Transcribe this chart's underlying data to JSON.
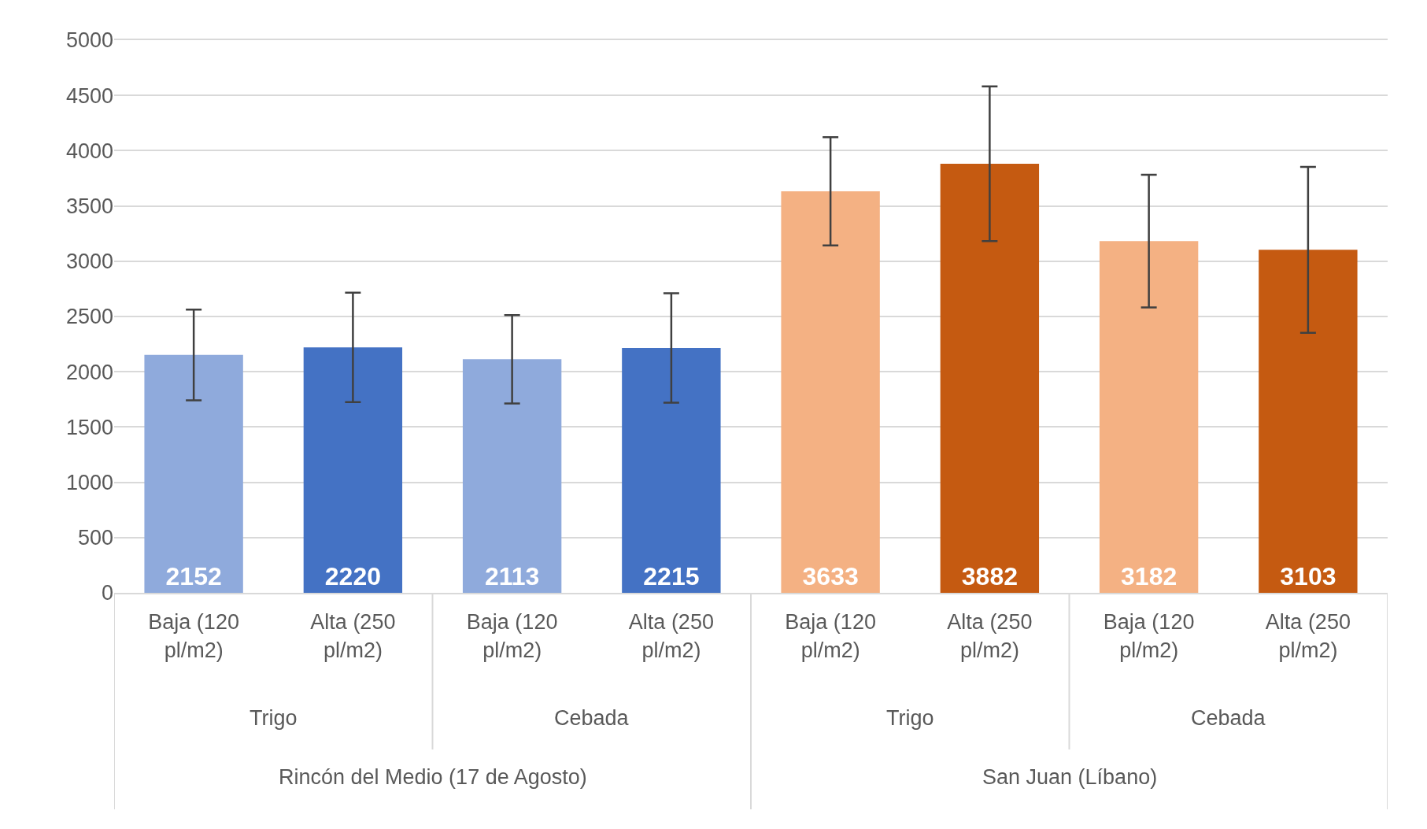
{
  "chart_data": {
    "type": "bar",
    "categories": [
      "Baja (120 pl/m2)",
      "Alta (250 pl/m2)",
      "Baja (120 pl/m2)",
      "Alta (250 pl/m2)",
      "Baja (120 pl/m2)",
      "Alta (250 pl/m2)",
      "Baja (120 pl/m2)",
      "Alta (250 pl/m2)"
    ],
    "values": [
      2152,
      2220,
      2113,
      2215,
      3633,
      3882,
      3182,
      3103
    ],
    "colors": [
      "#8faadc",
      "#4472c4",
      "#8faadc",
      "#4472c4",
      "#f4b183",
      "#c55a11",
      "#f4b183",
      "#c55a11"
    ],
    "errors": [
      410,
      495,
      400,
      495,
      490,
      700,
      600,
      750
    ],
    "data_labels": true,
    "annotations": [
      "Trigo",
      "Cebada",
      "Trigo",
      "Cebada",
      "Rincón del Medio (17 de Agosto)",
      "San Juan (Líbano)"
    ],
    "ylim": [
      0,
      5000
    ],
    "yticks": [
      0,
      500,
      1000,
      1500,
      2000,
      2500,
      3000,
      3500,
      4000,
      4500,
      5000
    ],
    "grid": "y"
  }
}
